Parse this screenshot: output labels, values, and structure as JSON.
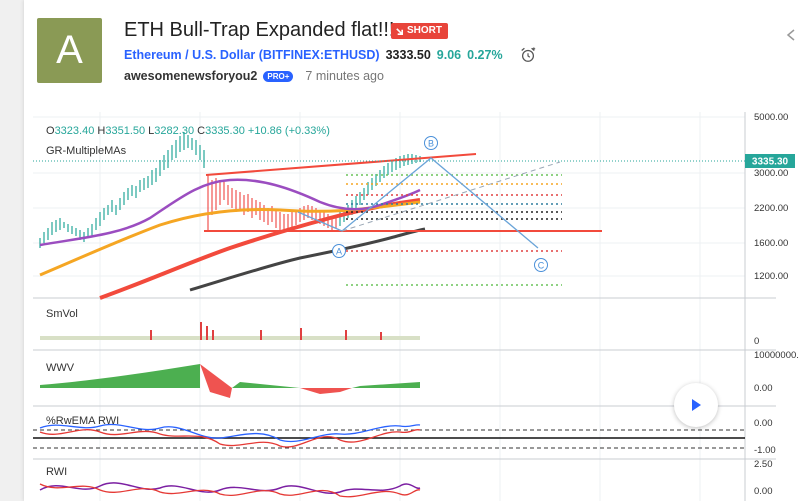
{
  "idea": {
    "avatar_letter": "A",
    "title": "ETH Bull-Trap Expanded flat!!!",
    "badge": "SHORT",
    "symbol": "Ethereum / U.S. Dollar (BITFINEX:ETHUSD)",
    "price": "3333.50",
    "change": "9.06",
    "change_pct": "0.27%",
    "author": "awesomenewsforyou2",
    "pro_badge": "PRO+",
    "time_ago": "7 minutes ago"
  },
  "chart": {
    "ohlc": {
      "o": "3323.40",
      "h": "3351.50",
      "l": "3282.30",
      "c": "3335.30",
      "change": "+10.86 (+0.33%)"
    },
    "indicator_main": "GR-MultipleMAs",
    "price_tag": "3335.30",
    "price_axis": [
      "5000.00",
      "3000.00",
      "2200.00",
      "1600.00",
      "1200.00"
    ],
    "wave_labels": [
      "A",
      "B",
      "C"
    ],
    "panes": [
      {
        "name": "SmVol",
        "axis": [
          "0"
        ]
      },
      {
        "name": "WWV",
        "axis": [
          "10000000.",
          "0.00"
        ]
      },
      {
        "name": "%RwEMA RWI",
        "axis": [
          "0.00",
          "-1.00"
        ]
      },
      {
        "name": "RWI",
        "axis": [
          "2.50",
          "0.00"
        ]
      }
    ]
  },
  "colors": {
    "accent": "#2962ff",
    "short": "#e8443a",
    "up": "#26a69a",
    "avatar": "#8a9a55"
  }
}
